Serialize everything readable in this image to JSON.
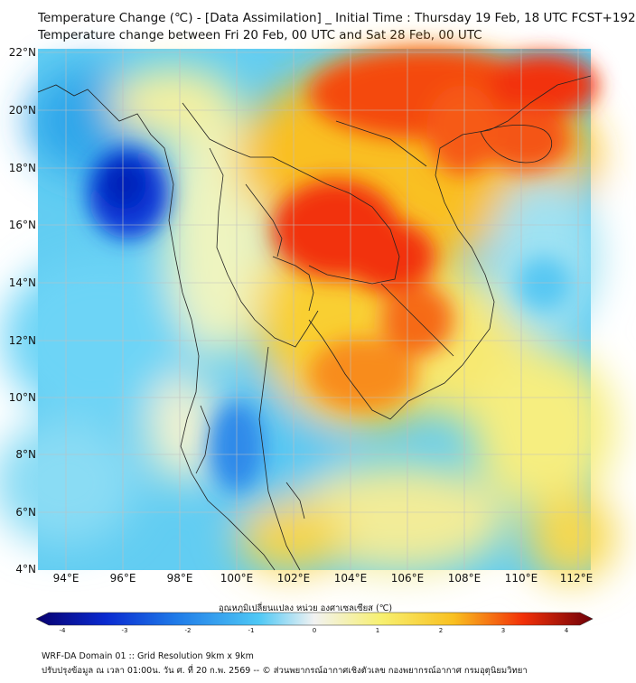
{
  "header": {
    "title_line1": "Temperature Change (℃) - [Data Assimilation] _ Initial Time : Thursday 19 Feb, 18 UTC FCST+192",
    "title_line2": "Temperature change between Fri 20 Feb, 00 UTC and Sat 28 Feb, 00 UTC"
  },
  "axes": {
    "lat_labels": [
      "22°N",
      "20°N",
      "18°N",
      "16°N",
      "14°N",
      "12°N",
      "10°N",
      "8°N",
      "6°N",
      "4°N"
    ],
    "lon_labels": [
      "94°E",
      "96°E",
      "98°E",
      "100°E",
      "102°E",
      "104°E",
      "106°E",
      "108°E",
      "110°E",
      "112°E"
    ]
  },
  "colorbar": {
    "title": "อุณหภูมิเปลี่ยนแปลง หน่วย องศาเซลเซียส (℃)",
    "ticks": [
      "-4",
      "-3",
      "-2",
      "-1",
      "0",
      "1",
      "2",
      "3",
      "4"
    ],
    "colors": {
      "min": "#08006e",
      "neg3": "#0a2ad0",
      "neg2": "#1f7ae8",
      "neg1": "#4ec8f5",
      "zero": "#f2f2f2",
      "pos1": "#f7f070",
      "pos2": "#f9c020",
      "pos3": "#f23008",
      "max": "#6e0008"
    }
  },
  "footer": {
    "line1": "WRF-DA Domain 01 :: Grid Resolution 9km x 9km",
    "line2": "ปรับปรุงข้อมูล ณ เวลา 01:00น. วัน ศ. ที่ 20 ก.พ. 2569 -- © ส่วนพยากรณ์อากาศเชิงตัวเลข กองพยากรณ์อากาศ กรมอุตุนิยมวิทยา"
  }
}
